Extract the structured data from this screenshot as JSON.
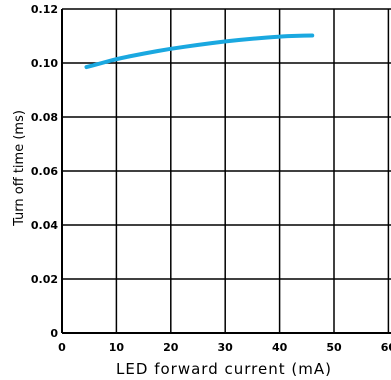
{
  "chart_data": {
    "type": "line",
    "title": "",
    "xlabel": "LED forward current (mA)",
    "ylabel": "Turn off time (ms)",
    "xlim": [
      0,
      60
    ],
    "ylim": [
      0,
      0.12
    ],
    "x_ticks": [
      0,
      10,
      20,
      30,
      40,
      50,
      60
    ],
    "x_tick_labels": [
      "0",
      "10",
      "20",
      "30",
      "40",
      "50",
      "60"
    ],
    "y_ticks": [
      0,
      0.02,
      0.04,
      0.06,
      0.08,
      0.1,
      0.12
    ],
    "y_tick_labels": [
      "0",
      "0.02",
      "0.04",
      "0.06",
      "0.08",
      "0.10",
      "0.12"
    ],
    "grid": true,
    "series": [
      {
        "color": "#1aa8e0",
        "x": [
          4.5,
          7,
          10,
          15,
          20,
          25,
          30,
          35,
          40,
          43,
          46
        ],
        "y": [
          0.0985,
          0.0998,
          0.1015,
          0.1035,
          0.1053,
          0.1067,
          0.108,
          0.109,
          0.1098,
          0.1101,
          0.1102
        ]
      }
    ]
  }
}
